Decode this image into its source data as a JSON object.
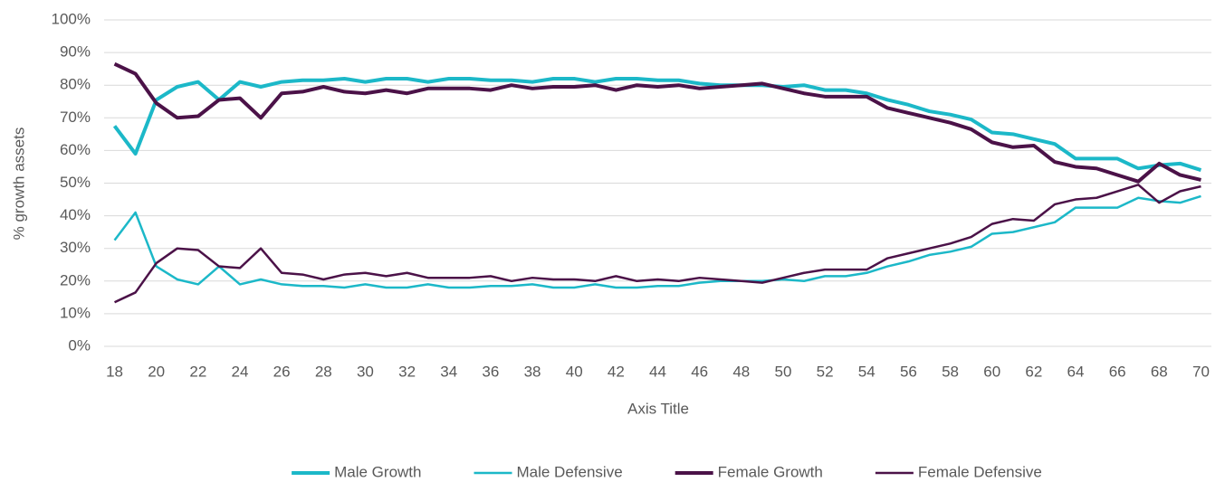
{
  "chart_data": {
    "type": "line",
    "x": [
      18,
      19,
      20,
      21,
      22,
      23,
      24,
      25,
      26,
      27,
      28,
      29,
      30,
      31,
      32,
      33,
      34,
      35,
      36,
      37,
      38,
      39,
      40,
      41,
      42,
      43,
      44,
      45,
      46,
      47,
      48,
      49,
      50,
      51,
      52,
      53,
      54,
      55,
      56,
      57,
      58,
      59,
      60,
      61,
      62,
      63,
      64,
      65,
      66,
      67,
      68,
      69,
      70
    ],
    "xlim": [
      17.5,
      70.5
    ],
    "xticks": [
      18,
      20,
      22,
      24,
      26,
      28,
      30,
      32,
      34,
      36,
      38,
      40,
      42,
      44,
      46,
      48,
      50,
      52,
      54,
      56,
      58,
      60,
      62,
      64,
      66,
      68,
      70
    ],
    "ylim": [
      0,
      100
    ],
    "yticks": [
      {
        "value": 0,
        "label": "0%"
      },
      {
        "value": 10,
        "label": "10%"
      },
      {
        "value": 20,
        "label": "20%"
      },
      {
        "value": 30,
        "label": "30%"
      },
      {
        "value": 40,
        "label": "40%"
      },
      {
        "value": 50,
        "label": "50%"
      },
      {
        "value": 60,
        "label": "60%"
      },
      {
        "value": 70,
        "label": "70%"
      },
      {
        "value": 80,
        "label": "80%"
      },
      {
        "value": 90,
        "label": "90%"
      },
      {
        "value": 100,
        "label": "100%"
      }
    ],
    "grid": true,
    "x_label": "Axis Title",
    "y_label": "% growth assets",
    "legend": "bottom",
    "series": [
      {
        "name": "Male Growth",
        "color": "#1cb8c8",
        "linewidth": 4,
        "values": [
          67.5,
          59,
          75.5,
          79.5,
          81,
          75.5,
          81,
          79.5,
          81,
          81.5,
          81.5,
          82,
          81,
          82,
          82,
          81,
          82,
          82,
          81.5,
          81.5,
          81,
          82,
          82,
          81,
          82,
          82,
          81.5,
          81.5,
          80.5,
          80,
          80,
          80,
          79.5,
          80,
          78.5,
          78.5,
          77.5,
          75.5,
          74,
          72,
          71,
          69.5,
          65.5,
          65,
          63.5,
          62,
          57.5,
          57.5,
          57.5,
          54.5,
          55.5,
          56,
          54
        ]
      },
      {
        "name": "Male Defensive",
        "color": "#1cb8c8",
        "linewidth": 2.5,
        "values": [
          32.5,
          41,
          24.5,
          20.5,
          19,
          24.5,
          19,
          20.5,
          19,
          18.5,
          18.5,
          18,
          19,
          18,
          18,
          19,
          18,
          18,
          18.5,
          18.5,
          19,
          18,
          18,
          19,
          18,
          18,
          18.5,
          18.5,
          19.5,
          20,
          20,
          20,
          20.5,
          20,
          21.5,
          21.5,
          22.5,
          24.5,
          26,
          28,
          29,
          30.5,
          34.5,
          35,
          36.5,
          38,
          42.5,
          42.5,
          42.5,
          45.5,
          44.5,
          44,
          46
        ]
      },
      {
        "name": "Female Growth",
        "color": "#4b1248",
        "linewidth": 4,
        "values": [
          86.5,
          83.5,
          74.5,
          70,
          70.5,
          75.5,
          76,
          70,
          77.5,
          78,
          79.5,
          78,
          77.5,
          78.5,
          77.5,
          79,
          79,
          79,
          78.5,
          80,
          79,
          79.5,
          79.5,
          80,
          78.5,
          80,
          79.5,
          80,
          79,
          79.5,
          80,
          80.5,
          79,
          77.5,
          76.5,
          76.5,
          76.5,
          73,
          71.5,
          70,
          68.5,
          66.5,
          62.5,
          61,
          61.5,
          56.5,
          55,
          54.5,
          52.5,
          50.5,
          56,
          52.5,
          51
        ]
      },
      {
        "name": "Female Defensive",
        "color": "#4b1248",
        "linewidth": 2.5,
        "values": [
          13.5,
          16.5,
          25.5,
          30,
          29.5,
          24.5,
          24,
          30,
          22.5,
          22,
          20.5,
          22,
          22.5,
          21.5,
          22.5,
          21,
          21,
          21,
          21.5,
          20,
          21,
          20.5,
          20.5,
          20,
          21.5,
          20,
          20.5,
          20,
          21,
          20.5,
          20,
          19.5,
          21,
          22.5,
          23.5,
          23.5,
          23.5,
          27,
          28.5,
          30,
          31.5,
          33.5,
          37.5,
          39,
          38.5,
          43.5,
          45,
          45.5,
          47.5,
          49.5,
          44,
          47.5,
          49
        ]
      }
    ]
  }
}
